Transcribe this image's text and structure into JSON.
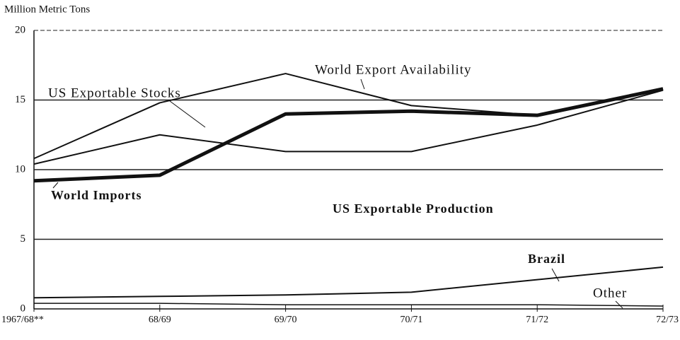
{
  "chart_data": {
    "type": "line",
    "y_label": "Million Metric Tons",
    "categories": [
      "1967/68**",
      "68/69",
      "69/70",
      "70/71",
      "71/72",
      "72/73"
    ],
    "ylim": [
      0,
      20
    ],
    "yticks": [
      0,
      5,
      10,
      15,
      20
    ],
    "grid": true,
    "series": [
      {
        "name": "World Export Availability",
        "color": "#111111",
        "line_width": 2,
        "values": [
          10.8,
          14.8,
          16.9,
          14.6,
          13.9,
          15.8
        ]
      },
      {
        "name": "US Exportable Stocks",
        "color": "#111111",
        "line_width": 2,
        "values": [
          10.4,
          12.5,
          11.3,
          11.3,
          13.2,
          15.7
        ]
      },
      {
        "name": "World Imports",
        "color": "#111111",
        "line_width": 5,
        "values": [
          9.2,
          9.6,
          14.0,
          14.2,
          13.9,
          15.8
        ]
      },
      {
        "name": "Brazil",
        "color": "#111111",
        "line_width": 2,
        "values": [
          0.8,
          0.9,
          1.0,
          1.2,
          2.1,
          3.0
        ]
      },
      {
        "name": "Other",
        "color": "#111111",
        "line_width": 1.5,
        "values": [
          0.4,
          0.4,
          0.3,
          0.3,
          0.3,
          0.2
        ]
      }
    ],
    "annotations": [
      "US Exportable Production"
    ]
  }
}
